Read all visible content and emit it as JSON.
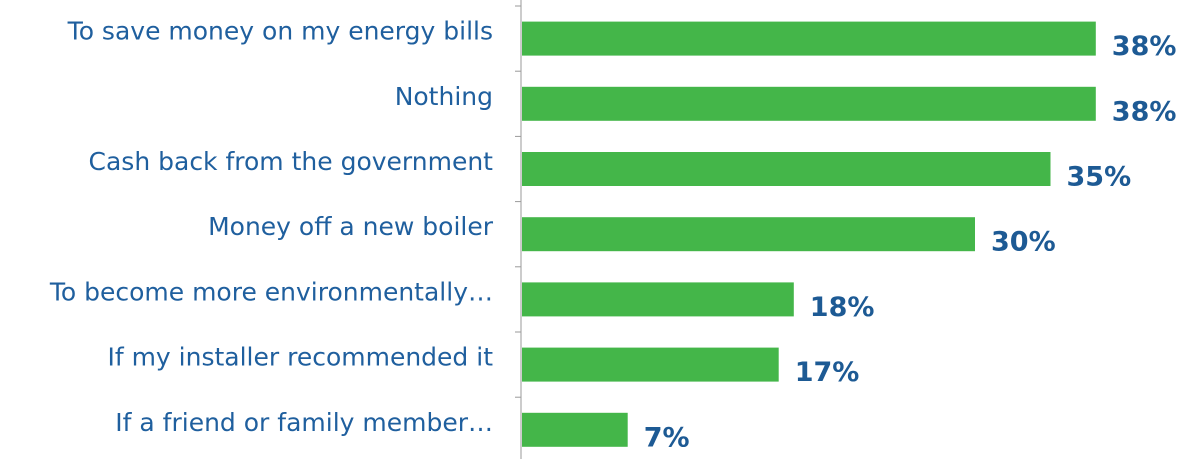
{
  "chart_data": {
    "type": "bar",
    "orientation": "horizontal",
    "categories": [
      "To save money on my energy bills",
      "Nothing",
      "Cash back from the government",
      "Money off a new boiler",
      "To become more environmentally…",
      "If my installer recommended it",
      "If a friend or family member…"
    ],
    "values": [
      38,
      38,
      35,
      30,
      18,
      17,
      7
    ],
    "value_labels": [
      "38%",
      "38%",
      "35%",
      "30%",
      "18%",
      "17%",
      "7%"
    ],
    "color": "#44b649"
  }
}
